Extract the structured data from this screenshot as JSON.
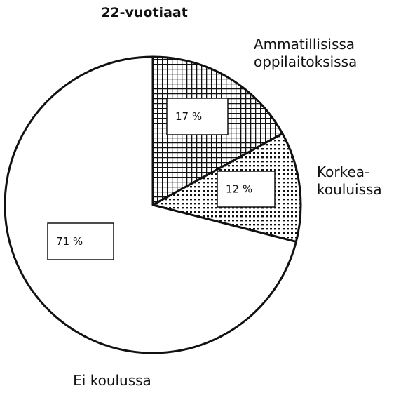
{
  "chart_data": {
    "type": "pie",
    "title": "22-vuotiaat",
    "categories": [
      "Ammatillisissa\noppilaitoksissa",
      "Korkea-\nkouluissa",
      "Ei koulussa"
    ],
    "values": [
      17,
      12,
      71
    ],
    "value_labels": [
      "17 %",
      "12 %",
      "71 %"
    ],
    "fills": [
      "grid",
      "dots",
      "none"
    ]
  }
}
